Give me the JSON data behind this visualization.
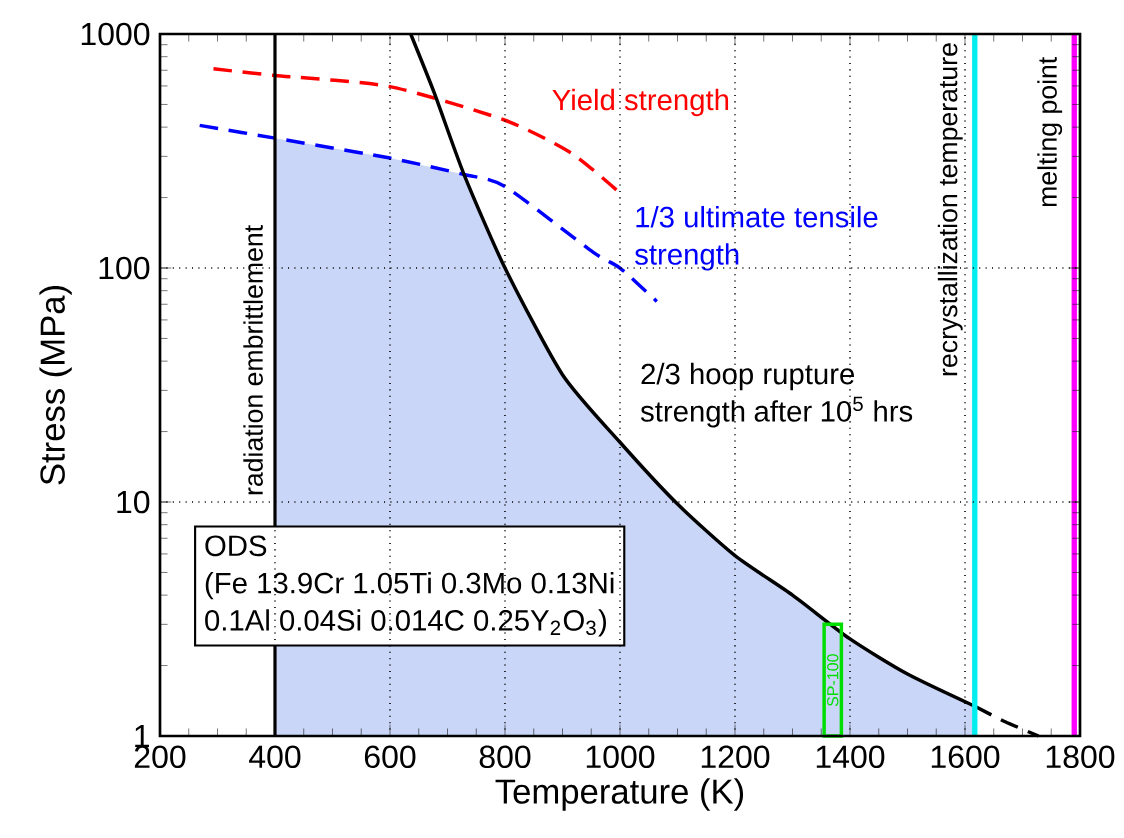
{
  "chart_data": {
    "type": "line",
    "xlabel": "Temperature (K)",
    "ylabel": "Stress (MPa)",
    "xlim": [
      200,
      1800
    ],
    "ylim": [
      1,
      1000
    ],
    "log": "y",
    "grid": true,
    "xticks": [
      200,
      400,
      600,
      800,
      1000,
      1200,
      1400,
      1600,
      1800
    ],
    "yticks": [
      1,
      10,
      100,
      1000
    ],
    "series": [
      {
        "type": "area",
        "color": "#cad6f7",
        "x": [
          400,
          600,
          729,
          800,
          900,
          1000,
          1100,
          1200,
          1300,
          1400,
          1500,
          1617
        ],
        "values": [
          359,
          295,
          251,
          100,
          35,
          18,
          9.8,
          5.9,
          4.0,
          2.6,
          1.84,
          1.34
        ]
      },
      {
        "name": "Yield strength",
        "color": "#ff0000",
        "line_style": "dashed",
        "x": [
          293,
          400,
          600,
          800,
          916,
          1001
        ],
        "values": [
          710,
          665,
          596,
          428,
          309,
          208
        ]
      },
      {
        "name": "1/3 ultimate tensile strength",
        "color": "#0000ff",
        "line_style": "dashed",
        "x": [
          269,
          400,
          600,
          729,
          800,
          953,
          1000,
          1064
        ],
        "values": [
          407,
          359,
          295,
          251,
          223,
          117,
          100,
          72
        ]
      },
      {
        "name": "2/3 hoop rupture strength after 10$^{5}$ hrs",
        "color": "#000000",
        "line_style": "solid",
        "x": [
          636,
          677,
          729,
          800,
          900,
          1000,
          1100,
          1200,
          1300,
          1400,
          1500,
          1617
        ],
        "values": [
          1000,
          560,
          250,
          100,
          35,
          18,
          9.8,
          5.9,
          4.0,
          2.6,
          1.84,
          1.34
        ]
      },
      {
        "color": "#000000",
        "line_style": "dashed",
        "x": [
          1617,
          1670,
          1728
        ],
        "values": [
          1.34,
          1.15,
          1
        ]
      },
      {
        "type": "bar",
        "name": "SP-100",
        "color": "#00dd00",
        "x": [
          1370
        ],
        "values": [
          3
        ]
      }
    ],
    "ref_lines": [
      {
        "axis": "x",
        "value": 400,
        "label": "radiation embrittlement",
        "color": "#000000"
      },
      {
        "axis": "x",
        "value": 1617,
        "label": "recrystallization temperature",
        "color": "#00eeee"
      },
      {
        "axis": "x",
        "value": 1790,
        "label": "melting point",
        "color": "#ff00ff"
      }
    ],
    "annotations": [
      "ODS",
      "(Fe 13.9Cr 1.05Ti 0.3Mo 0.13Ni",
      "0.1Al 0.04Si 0.014C 0.25Y$_{2}$O$_{3}$)"
    ]
  }
}
